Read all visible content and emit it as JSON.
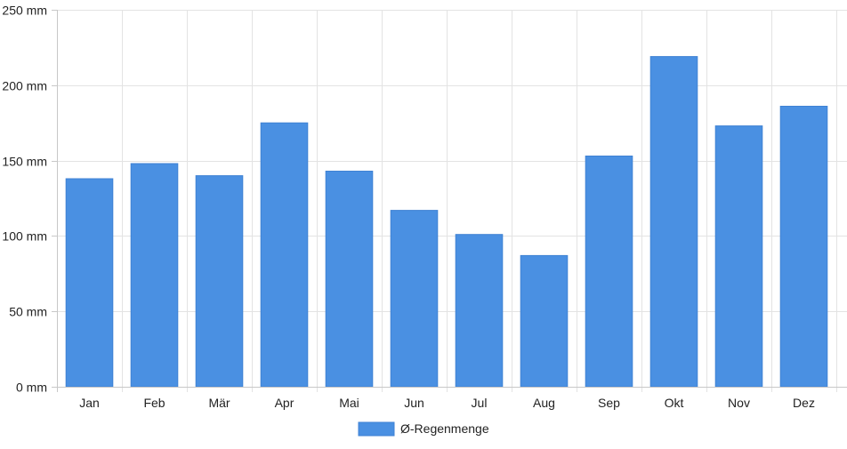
{
  "chart_data": {
    "type": "bar",
    "title": "",
    "xlabel": "",
    "ylabel": "",
    "unit_suffix": " mm",
    "categories": [
      "Jan",
      "Feb",
      "Mär",
      "Apr",
      "Mai",
      "Jun",
      "Jul",
      "Aug",
      "Sep",
      "Okt",
      "Nov",
      "Dez"
    ],
    "series": [
      {
        "name": "Ø-Regenmenge",
        "color": "#4a90e2",
        "values": [
          138,
          148,
          140,
          175,
          143,
          117,
          101,
          87,
          153,
          219,
          173,
          186
        ]
      }
    ],
    "ylim": [
      0,
      250
    ],
    "yticks": [
      0,
      50,
      100,
      150,
      200,
      250
    ],
    "ytick_labels": [
      "0 mm",
      "50 mm",
      "100 mm",
      "150 mm",
      "200 mm",
      "250 mm"
    ],
    "grid": true,
    "legend_position": "bottom-center"
  }
}
